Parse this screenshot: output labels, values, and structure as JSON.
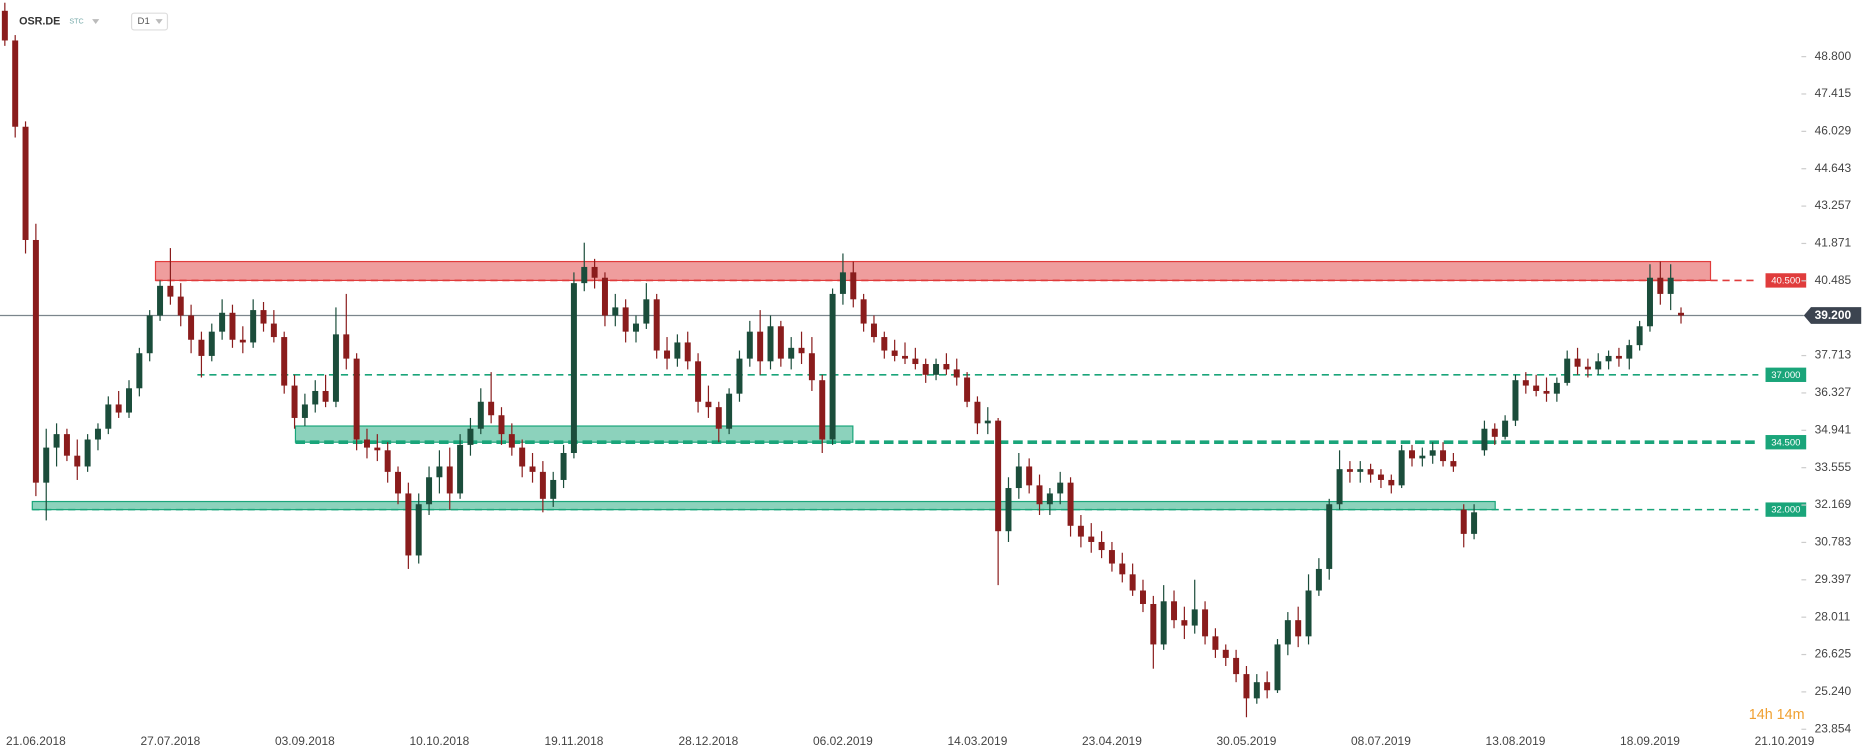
{
  "chart_data": {
    "type": "candlestick",
    "symbol": "OSR.DE",
    "instrument_type": "STC",
    "interval": "D1",
    "timer": "14h 14m",
    "up_color": "#1b4d3b",
    "down_color": "#8a1c1c",
    "categories": [
      null,
      null,
      null,
      "21.06.2018",
      null,
      null,
      null,
      null,
      null,
      null,
      null,
      null,
      null,
      null,
      null,
      null,
      "27.07.2018",
      null,
      null,
      null,
      null,
      null,
      null,
      null,
      null,
      null,
      null,
      null,
      null,
      "03.09.2018",
      null,
      null,
      null,
      null,
      null,
      null,
      null,
      null,
      null,
      null,
      null,
      null,
      "10.10.2018",
      null,
      null,
      null,
      null,
      null,
      null,
      null,
      null,
      null,
      null,
      null,
      null,
      "19.11.2018",
      null,
      null,
      null,
      null,
      null,
      null,
      null,
      null,
      null,
      null,
      null,
      null,
      "28.12.2018",
      null,
      null,
      null,
      null,
      null,
      null,
      null,
      null,
      null,
      null,
      null,
      null,
      "06.02.2019",
      null,
      null,
      null,
      null,
      null,
      null,
      null,
      null,
      null,
      null,
      null,
      null,
      "14.03.2019",
      null,
      null,
      null,
      null,
      null,
      null,
      null,
      null,
      null,
      null,
      null,
      null,
      "23.04.2019",
      null,
      null,
      null,
      null,
      null,
      null,
      null,
      null,
      null,
      null,
      null,
      null,
      "30.05.2019",
      null,
      null,
      null,
      null,
      null,
      null,
      null,
      null,
      null,
      null,
      null,
      null,
      "08.07.2019",
      null,
      null,
      null,
      null,
      null,
      null,
      null,
      null,
      null,
      null,
      null,
      null,
      "13.08.2019",
      null,
      null,
      null,
      null,
      null,
      null,
      null,
      null,
      null,
      null,
      null,
      null,
      "18.09.2019",
      null,
      null,
      null,
      null,
      null,
      null,
      null,
      null,
      null,
      null,
      null,
      null,
      "21.10.2019",
      null
    ],
    "open": [
      50.5,
      49.4,
      46.2,
      42.0,
      33.0,
      34.3,
      34.8,
      34.0,
      33.6,
      34.6,
      35.0,
      35.9,
      35.6,
      36.5,
      37.8,
      39.2,
      40.3,
      39.9,
      39.2,
      38.3,
      37.7,
      38.6,
      39.3,
      38.3,
      38.2,
      39.4,
      38.9,
      38.4,
      36.6,
      35.4,
      35.9,
      36.4,
      36.0,
      38.5,
      37.6,
      34.6,
      34.3,
      34.2,
      33.4,
      32.6,
      30.3,
      32.2,
      33.2,
      33.6,
      32.6,
      34.4,
      35.0,
      36.0,
      35.5,
      34.8,
      34.3,
      33.6,
      33.4,
      32.4,
      33.1,
      34.1,
      40.4,
      41.0,
      40.6,
      39.2,
      39.5,
      38.6,
      38.9,
      39.8,
      37.9,
      37.6,
      38.2,
      37.5,
      36.0,
      35.8,
      35.0,
      36.3,
      37.6,
      38.6,
      37.5,
      38.8,
      37.6,
      38.0,
      37.8,
      36.8,
      34.6,
      40.0,
      40.8,
      39.8,
      38.9,
      38.4,
      37.9,
      37.7,
      37.6,
      37.4,
      37.0,
      37.4,
      37.2,
      36.9,
      36.0,
      35.2,
      35.3,
      31.2,
      32.8,
      33.6,
      32.9,
      32.2,
      32.6,
      33.0,
      31.4,
      31.0,
      30.8,
      30.5,
      30.0,
      29.6,
      29.0,
      28.5,
      27.0,
      28.6,
      27.9,
      27.7,
      28.3,
      27.3,
      26.8,
      26.5,
      25.9,
      25.0,
      25.6,
      25.3,
      27.0,
      27.9,
      27.3,
      29.0,
      29.8,
      32.2,
      33.5,
      33.4,
      33.5,
      33.3,
      33.1,
      32.9,
      34.2,
      33.9,
      34.0,
      34.2,
      33.8,
      32.0,
      31.1,
      34.2,
      35.0,
      34.7,
      35.3,
      36.8,
      36.6,
      36.4,
      36.3,
      36.7,
      37.6,
      37.3,
      37.2,
      37.5,
      37.7,
      37.6,
      38.1,
      38.8,
      40.6,
      40.0,
      39.3,
      null,
      null,
      null,
      null,
      null,
      null,
      null,
      null,
      null,
      null,
      null
    ],
    "high": [
      50.8,
      49.6,
      46.4,
      42.6,
      35.0,
      35.2,
      35.0,
      34.6,
      34.8,
      35.2,
      36.2,
      36.4,
      36.8,
      38.0,
      39.4,
      40.5,
      41.7,
      40.4,
      39.6,
      38.6,
      38.9,
      39.8,
      39.6,
      38.8,
      39.8,
      39.7,
      39.4,
      38.6,
      37.0,
      36.3,
      36.8,
      37.0,
      39.5,
      40.0,
      37.8,
      35.0,
      34.8,
      34.5,
      33.6,
      33.0,
      32.6,
      33.6,
      34.2,
      34.3,
      34.8,
      35.4,
      36.5,
      37.1,
      35.8,
      35.2,
      34.6,
      34.1,
      33.8,
      33.4,
      34.4,
      40.8,
      41.9,
      41.3,
      40.8,
      40.0,
      39.8,
      39.2,
      40.4,
      40.0,
      38.4,
      38.5,
      38.6,
      37.8,
      36.6,
      36.0,
      36.5,
      37.9,
      39.0,
      39.4,
      39.2,
      39.0,
      38.4,
      38.6,
      38.4,
      37.0,
      40.2,
      41.5,
      41.2,
      40.0,
      39.2,
      38.6,
      38.3,
      38.2,
      38.0,
      37.6,
      37.6,
      37.8,
      37.6,
      37.1,
      36.2,
      35.8,
      35.4,
      33.2,
      34.1,
      33.9,
      33.3,
      32.8,
      33.4,
      33.2,
      31.8,
      31.5,
      31.2,
      30.8,
      30.4,
      30.0,
      29.4,
      28.8,
      29.2,
      29.0,
      28.4,
      29.4,
      28.6,
      27.6,
      27.0,
      26.8,
      26.2,
      25.9,
      26.0,
      27.2,
      28.2,
      28.4,
      29.6,
      30.2,
      32.4,
      34.2,
      33.8,
      33.8,
      33.7,
      33.5,
      33.3,
      34.4,
      34.4,
      34.3,
      34.5,
      34.5,
      34.1,
      32.2,
      32.2,
      35.3,
      35.2,
      35.5,
      37.0,
      37.1,
      37.0,
      36.9,
      36.9,
      37.9,
      38.0,
      37.6,
      37.8,
      37.9,
      38.0,
      38.3,
      39.0,
      41.1,
      41.2,
      41.1,
      39.5,
      null,
      null,
      null,
      null,
      null,
      null,
      null,
      null,
      null,
      null,
      null
    ],
    "low": [
      49.2,
      45.8,
      41.5,
      32.5,
      31.6,
      33.6,
      33.8,
      33.1,
      33.4,
      34.2,
      34.8,
      35.4,
      35.4,
      36.2,
      37.5,
      39.0,
      39.6,
      38.8,
      37.8,
      36.9,
      37.5,
      38.3,
      38.0,
      37.8,
      38.0,
      38.6,
      38.2,
      36.3,
      35.0,
      35.1,
      35.6,
      35.8,
      35.8,
      37.2,
      34.2,
      33.9,
      33.8,
      33.0,
      32.2,
      29.8,
      30.0,
      31.8,
      32.6,
      32.0,
      32.4,
      34.0,
      34.8,
      35.2,
      34.4,
      34.0,
      33.2,
      33.0,
      31.9,
      32.1,
      32.8,
      33.9,
      40.1,
      40.2,
      38.8,
      38.8,
      38.2,
      38.2,
      38.7,
      37.6,
      37.2,
      37.3,
      37.2,
      35.6,
      35.4,
      34.5,
      34.8,
      36.0,
      37.3,
      37.0,
      37.2,
      37.3,
      37.2,
      37.4,
      36.4,
      34.1,
      34.4,
      39.6,
      39.5,
      38.6,
      38.2,
      37.6,
      37.5,
      37.4,
      37.2,
      36.7,
      36.8,
      37.0,
      36.6,
      35.8,
      34.8,
      34.8,
      29.2,
      30.8,
      32.4,
      32.6,
      31.8,
      31.8,
      32.2,
      31.0,
      30.6,
      30.4,
      30.2,
      29.7,
      29.3,
      28.8,
      28.2,
      26.1,
      26.8,
      27.6,
      27.2,
      27.4,
      27.0,
      26.5,
      26.2,
      25.6,
      24.3,
      24.8,
      25.0,
      25.2,
      26.6,
      26.9,
      27.0,
      28.8,
      29.4,
      32.0,
      33.0,
      33.0,
      33.0,
      32.8,
      32.6,
      32.8,
      33.6,
      33.6,
      33.7,
      33.6,
      33.4,
      30.6,
      30.9,
      34.0,
      34.4,
      34.6,
      35.1,
      36.3,
      36.2,
      36.0,
      36.0,
      36.6,
      37.0,
      36.9,
      37.0,
      37.2,
      37.3,
      37.2,
      37.9,
      38.6,
      39.6,
      39.4,
      38.9,
      null,
      null,
      null,
      null,
      null,
      null,
      null,
      null,
      null,
      null,
      null
    ],
    "close": [
      49.4,
      46.2,
      42.0,
      33.0,
      34.3,
      34.8,
      34.0,
      33.6,
      34.6,
      35.0,
      35.9,
      35.6,
      36.5,
      37.8,
      39.2,
      40.3,
      39.9,
      39.2,
      38.3,
      37.7,
      38.6,
      39.3,
      38.3,
      38.2,
      39.4,
      38.9,
      38.4,
      36.6,
      35.4,
      35.9,
      36.4,
      36.0,
      38.5,
      37.6,
      34.6,
      34.3,
      34.2,
      33.4,
      32.6,
      30.3,
      32.2,
      33.2,
      33.6,
      32.6,
      34.4,
      35.0,
      36.0,
      35.5,
      34.8,
      34.3,
      33.6,
      33.4,
      32.4,
      33.1,
      34.1,
      40.4,
      41.0,
      40.6,
      39.2,
      39.5,
      38.6,
      38.9,
      39.8,
      37.9,
      37.6,
      38.2,
      37.5,
      36.0,
      35.8,
      35.0,
      36.3,
      37.6,
      38.6,
      37.5,
      38.8,
      37.6,
      38.0,
      37.8,
      36.8,
      34.6,
      40.0,
      40.8,
      39.8,
      38.9,
      38.4,
      37.9,
      37.7,
      37.6,
      37.4,
      37.0,
      37.4,
      37.2,
      36.9,
      36.0,
      35.2,
      35.3,
      31.2,
      32.8,
      33.6,
      32.9,
      32.2,
      32.6,
      33.0,
      31.4,
      31.0,
      30.8,
      30.5,
      30.0,
      29.6,
      29.0,
      28.5,
      27.0,
      28.6,
      27.9,
      27.7,
      28.3,
      27.3,
      26.8,
      26.5,
      25.9,
      25.0,
      25.6,
      25.3,
      27.0,
      27.9,
      27.3,
      29.0,
      29.8,
      32.2,
      33.5,
      33.4,
      33.5,
      33.3,
      33.1,
      32.9,
      34.2,
      33.9,
      34.0,
      34.2,
      33.8,
      33.6,
      31.1,
      31.9,
      35.0,
      34.7,
      35.3,
      36.8,
      36.6,
      36.4,
      36.3,
      36.7,
      37.6,
      37.3,
      37.2,
      37.5,
      37.7,
      37.6,
      38.1,
      38.8,
      40.6,
      40.0,
      40.6,
      39.2,
      null,
      null,
      null,
      null,
      null,
      null,
      null,
      null,
      null,
      null,
      null
    ],
    "ylim": [
      23.75,
      50.9
    ],
    "yticks": [
      {
        "value": 48.8,
        "label": "48.800"
      },
      {
        "value": 47.415,
        "label": "47.415"
      },
      {
        "value": 46.029,
        "label": "46.029"
      },
      {
        "value": 44.643,
        "label": "44.643"
      },
      {
        "value": 43.257,
        "label": "43.257"
      },
      {
        "value": 41.871,
        "label": "41.871"
      },
      {
        "value": 40.485,
        "label": "40.485"
      },
      {
        "value": 37.713,
        "label": "37.713"
      },
      {
        "value": 36.327,
        "label": "36.327"
      },
      {
        "value": 34.941,
        "label": "34.941"
      },
      {
        "value": 33.555,
        "label": "33.555"
      },
      {
        "value": 32.169,
        "label": "32.169"
      },
      {
        "value": 30.783,
        "label": "30.783"
      },
      {
        "value": 29.397,
        "label": "29.397"
      },
      {
        "value": 28.011,
        "label": "28.011"
      },
      {
        "value": 26.625,
        "label": "26.625"
      },
      {
        "value": 25.24,
        "label": "25.240"
      },
      {
        "value": 23.854,
        "label": "23.854"
      }
    ],
    "grid": false,
    "current_price": {
      "value": 39.2,
      "label": "39.200",
      "color": "#3c4450"
    },
    "levels": [
      {
        "value": 40.5,
        "label": "40.500",
        "color": "#e03c3c"
      },
      {
        "value": 37.0,
        "label": "37.000",
        "color": "#1aa57a"
      },
      {
        "value": 34.5,
        "label": "34.500",
        "color": "#1aa57a"
      },
      {
        "value": 32.0,
        "label": "32.000",
        "color": "#1aa57a"
      }
    ],
    "zones": [
      {
        "low": 40.5,
        "high": 41.2,
        "color": "#e03c3c"
      },
      {
        "low": 34.5,
        "high": 35.1,
        "color": "#1aa57a"
      },
      {
        "low": 32.0,
        "high": 32.3,
        "color": "#1aa57a"
      }
    ]
  }
}
